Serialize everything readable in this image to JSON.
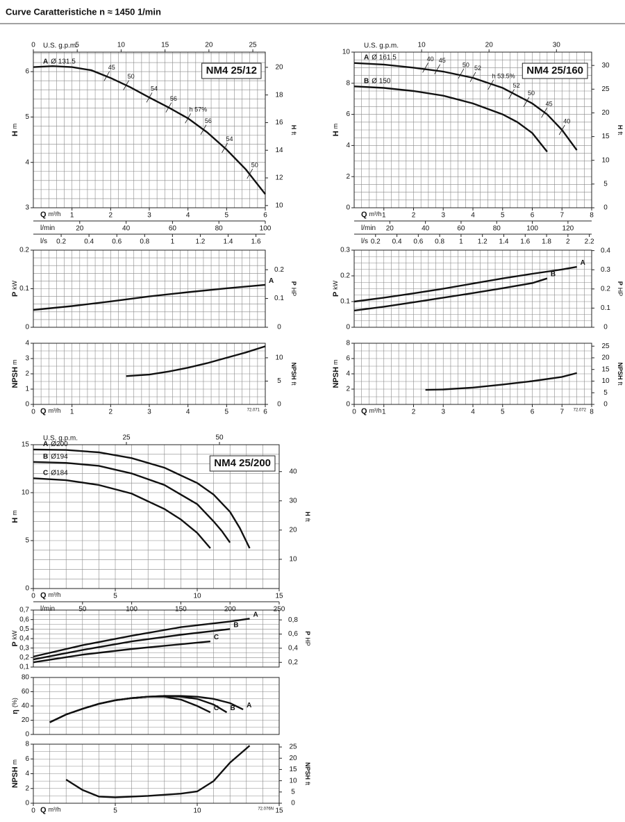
{
  "header": {
    "title": "Curve Caratteristiche n ≈ 1450 1/min"
  },
  "chart_data": [
    {
      "type": "line",
      "title": "NM4 25/12",
      "ylabel": "H",
      "yunit": "m",
      "y2label": "H",
      "y2unit": "ft",
      "xlim": [
        0,
        6
      ],
      "ylim": [
        3,
        6.43
      ],
      "yticks": [
        3,
        4,
        5,
        6
      ],
      "y2lim": [
        9.84,
        21.1
      ],
      "y2ticks": [
        10,
        12,
        14,
        16,
        18,
        20
      ],
      "grid": {
        "x": 0.2,
        "y": 0.2
      },
      "series_label": "start",
      "top_axis": {
        "label": "U.S. g.p.m.",
        "lim": [
          0,
          26.42
        ],
        "ticks": [
          0,
          5,
          10,
          15,
          20,
          25
        ]
      },
      "x_axes": [
        {
          "label": "Q",
          "unit": "m³/h",
          "lim": [
            0,
            6
          ],
          "ticks": [
            1,
            2,
            3,
            4,
            5,
            6
          ]
        },
        {
          "label": "l/min",
          "lim": [
            0,
            100
          ],
          "ticks": [
            20,
            40,
            60,
            80,
            100
          ]
        },
        {
          "label": "l/s",
          "lim": [
            0,
            1.667
          ],
          "ticks": [
            0.2,
            0.4,
            0.6,
            0.8,
            1,
            1.2,
            1.4,
            1.6
          ]
        }
      ],
      "series": [
        {
          "name": "A",
          "label": "Ø 131.5",
          "x": [
            0,
            0.5,
            1,
            1.5,
            2,
            2.5,
            3,
            3.5,
            4,
            4.5,
            5,
            5.5,
            6
          ],
          "values": [
            6.1,
            6.12,
            6.1,
            6.03,
            5.86,
            5.66,
            5.43,
            5.21,
            4.97,
            4.66,
            4.28,
            3.84,
            3.3
          ]
        }
      ],
      "annotations": [
        {
          "text": "45",
          "x": 1.9,
          "y": 5.9
        },
        {
          "text": "50",
          "x": 2.4,
          "y": 5.7
        },
        {
          "text": "54",
          "x": 3,
          "y": 5.43
        },
        {
          "text": "56",
          "x": 3.5,
          "y": 5.21
        },
        {
          "text": "h 57%",
          "x": 4,
          "y": 4.97
        },
        {
          "text": "56",
          "x": 4.4,
          "y": 4.72
        },
        {
          "text": "54",
          "x": 4.95,
          "y": 4.32
        },
        {
          "text": "50",
          "x": 5.6,
          "y": 3.75
        }
      ]
    },
    {
      "type": "line",
      "ylabel": "P",
      "yunit": "kW",
      "y2label": "P",
      "y2unit": "HP",
      "xlim": [
        0,
        6
      ],
      "ylim": [
        0,
        0.2
      ],
      "yticks": [
        0,
        0.1,
        0.2
      ],
      "y2lim": [
        0,
        0.268
      ],
      "y2ticks": [
        0,
        0.1,
        0.2
      ],
      "grid": {
        "x": 0.2,
        "y": 0.02
      },
      "series_label": "end",
      "series": [
        {
          "name": "A",
          "x": [
            0,
            1,
            2,
            3,
            4,
            5,
            6
          ],
          "values": [
            0.045,
            0.055,
            0.067,
            0.08,
            0.091,
            0.101,
            0.11
          ]
        }
      ]
    },
    {
      "type": "line",
      "ylabel": "NPSH",
      "yunit": "m",
      "y2label": "NPSH",
      "y2unit": "ft",
      "code": "72.071",
      "xlim": [
        0,
        6
      ],
      "ylim": [
        0,
        4
      ],
      "yticks": [
        0,
        1,
        2,
        3,
        4
      ],
      "y2lim": [
        0,
        13.12
      ],
      "y2ticks": [
        0,
        5,
        10
      ],
      "grid": {
        "x": 0.2,
        "y": 0.5
      },
      "x_axes": [
        {
          "label": "Q",
          "unit": "m³/h",
          "lim": [
            0,
            6
          ],
          "ticks": [
            0,
            1,
            2,
            3,
            4,
            5,
            6
          ]
        }
      ],
      "series": [
        {
          "x": [
            2.4,
            3,
            3.5,
            4,
            4.5,
            5,
            5.5,
            6
          ],
          "values": [
            1.85,
            1.95,
            2.15,
            2.4,
            2.7,
            3.05,
            3.4,
            3.8
          ]
        }
      ]
    },
    {
      "type": "line",
      "title": "NM4 25/160",
      "ylabel": "H",
      "yunit": "m",
      "y2label": "H",
      "y2unit": "ft",
      "xlim": [
        0,
        8
      ],
      "ylim": [
        0,
        10
      ],
      "yticks": [
        0,
        2,
        4,
        6,
        8,
        10
      ],
      "y2lim": [
        0,
        32.81
      ],
      "y2ticks": [
        0,
        5,
        10,
        15,
        20,
        25,
        30
      ],
      "grid": {
        "x": 0.25,
        "y": 0.5
      },
      "series_label": "start",
      "top_axis": {
        "label": "U.S. g.p.m.",
        "lim": [
          0,
          35.22
        ],
        "ticks": [
          10,
          20,
          30
        ]
      },
      "x_axes": [
        {
          "label": "Q",
          "unit": "m³/h",
          "lim": [
            0,
            8
          ],
          "ticks": [
            1,
            2,
            3,
            4,
            5,
            6,
            7,
            8
          ]
        },
        {
          "label": "l/min",
          "lim": [
            0,
            133.3
          ],
          "ticks": [
            20,
            40,
            60,
            80,
            100,
            120
          ]
        },
        {
          "label": "l/s",
          "lim": [
            0,
            2.222
          ],
          "ticks": [
            0.2,
            0.4,
            0.6,
            0.8,
            1,
            1.2,
            1.4,
            1.6,
            1.8,
            2,
            2.2
          ]
        }
      ],
      "series": [
        {
          "name": "A",
          "label": "Ø 161.5",
          "x": [
            0,
            1,
            2,
            3,
            4,
            5,
            6,
            6.5,
            7,
            7.5
          ],
          "values": [
            9.3,
            9.2,
            9,
            8.75,
            8.35,
            7.7,
            6.7,
            6,
            5,
            3.7
          ]
        },
        {
          "name": "B",
          "label": "Ø 150",
          "x": [
            0,
            1,
            2,
            3,
            4,
            5,
            5.5,
            6,
            6.5
          ],
          "values": [
            7.8,
            7.7,
            7.5,
            7.2,
            6.7,
            6,
            5.5,
            4.8,
            3.6
          ]
        }
      ],
      "annotations": [
        {
          "text": "40",
          "x": 2.4,
          "y": 9
        },
        {
          "text": "45",
          "x": 2.8,
          "y": 8.9
        },
        {
          "text": "50",
          "x": 3.6,
          "y": 8.62
        },
        {
          "text": "52",
          "x": 4,
          "y": 8.4
        },
        {
          "text": "h 53.5%",
          "x": 4.6,
          "y": 7.9
        },
        {
          "text": "52",
          "x": 5.3,
          "y": 7.3
        },
        {
          "text": "50",
          "x": 5.8,
          "y": 6.8
        },
        {
          "text": "45",
          "x": 6.4,
          "y": 6.1
        },
        {
          "text": "40",
          "x": 7,
          "y": 5
        }
      ]
    },
    {
      "type": "line",
      "ylabel": "P",
      "yunit": "kW",
      "y2label": "P",
      "y2unit": "HP",
      "xlim": [
        0,
        8
      ],
      "ylim": [
        0,
        0.3
      ],
      "yticks": [
        0,
        0.1,
        0.2,
        0.3
      ],
      "y2lim": [
        0,
        0.4023
      ],
      "y2ticks": [
        0,
        0.1,
        0.2,
        0.3,
        0.4
      ],
      "grid": {
        "x": 0.25,
        "y": 0.025
      },
      "series_label": "end",
      "series": [
        {
          "name": "A",
          "x": [
            0,
            1,
            2,
            3,
            4,
            5,
            6,
            7,
            7.5
          ],
          "values": [
            0.1,
            0.115,
            0.132,
            0.15,
            0.17,
            0.19,
            0.208,
            0.225,
            0.235
          ]
        },
        {
          "name": "B",
          "x": [
            0,
            1,
            2,
            3,
            4,
            5,
            6,
            6.5
          ],
          "values": [
            0.065,
            0.08,
            0.097,
            0.115,
            0.133,
            0.152,
            0.172,
            0.19
          ]
        }
      ]
    },
    {
      "type": "line",
      "ylabel": "NPSH",
      "yunit": "m",
      "y2label": "NPSH",
      "y2unit": "ft",
      "code": "72.072",
      "xlim": [
        0,
        8
      ],
      "ylim": [
        0,
        8
      ],
      "yticks": [
        0,
        2,
        4,
        6,
        8
      ],
      "y2lim": [
        0,
        26.25
      ],
      "y2ticks": [
        0,
        5,
        10,
        15,
        20,
        25
      ],
      "grid": {
        "x": 0.25,
        "y": 1
      },
      "x_axes": [
        {
          "label": "Q",
          "unit": "m³/h",
          "lim": [
            0,
            8
          ],
          "ticks": [
            0,
            1,
            2,
            3,
            4,
            5,
            6,
            7,
            8
          ]
        }
      ],
      "series": [
        {
          "x": [
            2.4,
            3,
            4,
            5,
            6,
            7,
            7.5
          ],
          "values": [
            1.9,
            1.95,
            2.2,
            2.6,
            3.05,
            3.6,
            4.1
          ]
        }
      ]
    },
    {
      "type": "line",
      "title": "NM4 25/200",
      "ylabel": "H",
      "yunit": "m",
      "y2label": "H",
      "y2unit": "ft",
      "xlim": [
        0,
        15
      ],
      "ylim": [
        0,
        15
      ],
      "yticks": [
        0,
        5,
        10,
        15
      ],
      "y2lim": [
        0,
        49.2
      ],
      "y2ticks": [
        10,
        20,
        30,
        40
      ],
      "grid": {
        "x": 1,
        "y": 1
      },
      "series_label": "start",
      "top_axis": {
        "label": "U.S. g.p.m.",
        "lim": [
          0,
          66.04
        ],
        "ticks": [
          25,
          50
        ]
      },
      "x_axes": [
        {
          "label": "Q",
          "unit": "m³/h",
          "lim": [
            0,
            15
          ],
          "ticks": [
            0,
            5,
            10,
            15
          ]
        },
        {
          "label": "l/min",
          "lim": [
            0,
            250
          ],
          "ticks": [
            50,
            100,
            150,
            200,
            250
          ]
        }
      ],
      "series": [
        {
          "name": "A",
          "label": "Ø200",
          "x": [
            0,
            2,
            4,
            6,
            8,
            10,
            11,
            12,
            12.6,
            13.2
          ],
          "values": [
            14.5,
            14.45,
            14.2,
            13.6,
            12.6,
            11,
            9.8,
            8,
            6.3,
            4.2
          ]
        },
        {
          "name": "B",
          "label": "Ø194",
          "x": [
            0,
            2,
            4,
            6,
            8,
            10,
            11,
            11.5,
            12
          ],
          "values": [
            13.2,
            13.1,
            12.8,
            12,
            10.8,
            8.8,
            7,
            6,
            4.8
          ]
        },
        {
          "name": "C",
          "label": "Ø184",
          "x": [
            0,
            2,
            4,
            6,
            8,
            9,
            10,
            10.8
          ],
          "values": [
            11.5,
            11.3,
            10.8,
            9.9,
            8.3,
            7.2,
            5.8,
            4.2
          ]
        }
      ]
    },
    {
      "type": "line",
      "ylabel": "P",
      "yunit": "kW",
      "y2label": "P",
      "y2unit": "HP",
      "xlim": [
        0,
        15
      ],
      "ylim": [
        0.1,
        0.7
      ],
      "yticks": [
        {
          "value": 0.1,
          "label": "0,1"
        },
        {
          "value": 0.2,
          "label": "0,2"
        },
        {
          "value": 0.3,
          "label": "0,3"
        },
        {
          "value": 0.4,
          "label": "0,4"
        },
        {
          "value": 0.5,
          "label": "0,5"
        },
        {
          "value": 0.6,
          "label": "0,6"
        },
        {
          "value": 0.7,
          "label": "0,7"
        }
      ],
      "y2lim": [
        0.1341,
        0.9387
      ],
      "y2ticks": [
        {
          "value": 0.2,
          "label": "0,2"
        },
        {
          "value": 0.4,
          "label": "0,4"
        },
        {
          "value": 0.6,
          "label": "0,6"
        },
        {
          "value": 0.8,
          "label": "0,8"
        }
      ],
      "grid": {
        "x": 1,
        "y": 0.05
      },
      "series_label": "end",
      "series": [
        {
          "name": "A",
          "x": [
            0,
            3,
            6,
            9,
            12,
            13.2
          ],
          "values": [
            0.21,
            0.33,
            0.43,
            0.52,
            0.58,
            0.61
          ]
        },
        {
          "name": "B",
          "x": [
            0,
            3,
            6,
            9,
            12
          ],
          "values": [
            0.18,
            0.28,
            0.37,
            0.44,
            0.5
          ]
        },
        {
          "name": "C",
          "x": [
            0,
            3,
            6,
            9,
            10.8
          ],
          "values": [
            0.15,
            0.23,
            0.29,
            0.34,
            0.37
          ]
        }
      ]
    },
    {
      "type": "line",
      "ylabel": "η",
      "yunit": "(%)",
      "xlim": [
        0,
        15
      ],
      "ylim": [
        0,
        80
      ],
      "yticks": [
        0,
        20,
        40,
        60,
        80
      ],
      "grid": {
        "x": 1,
        "y": 10
      },
      "series_label": "end",
      "series": [
        {
          "name": "A",
          "x": [
            1,
            2,
            3,
            4,
            5,
            6,
            7,
            8,
            9,
            10,
            11,
            12,
            12.8
          ],
          "values": [
            17,
            28,
            36,
            43,
            48,
            51,
            53,
            54,
            54,
            53,
            50,
            44,
            35
          ]
        },
        {
          "name": "B",
          "x": [
            1,
            2,
            3,
            4,
            5,
            6,
            7,
            8,
            9,
            10,
            11,
            11.8
          ],
          "values": [
            17,
            28,
            36,
            43,
            48,
            51,
            53,
            54,
            53,
            50,
            42,
            31
          ]
        },
        {
          "name": "C",
          "x": [
            1,
            2,
            3,
            4,
            5,
            6,
            7,
            8,
            9,
            10,
            10.8
          ],
          "values": [
            17,
            28,
            36,
            43,
            48,
            51,
            53,
            53,
            49,
            40,
            31
          ]
        }
      ]
    },
    {
      "type": "line",
      "ylabel": "NPSH",
      "yunit": "m",
      "y2label": "NPSH",
      "y2unit": "ft",
      "code": "72.076N",
      "xlim": [
        0,
        15
      ],
      "ylim": [
        0,
        8
      ],
      "yticks": [
        0,
        2,
        4,
        6,
        8
      ],
      "y2lim": [
        0,
        26.25
      ],
      "y2ticks": [
        0,
        5,
        10,
        15,
        20,
        25
      ],
      "grid": {
        "x": 1,
        "y": 1
      },
      "x_axes": [
        {
          "label": "Q",
          "unit": "m³/h",
          "lim": [
            0,
            15
          ],
          "ticks": [
            0,
            5,
            10,
            15
          ]
        }
      ],
      "series": [
        {
          "x": [
            2,
            3,
            4,
            5,
            7,
            9,
            10,
            11,
            12,
            13.2
          ],
          "values": [
            3.2,
            1.8,
            0.9,
            0.8,
            1,
            1.3,
            1.6,
            3,
            5.5,
            7.8
          ]
        }
      ]
    }
  ]
}
